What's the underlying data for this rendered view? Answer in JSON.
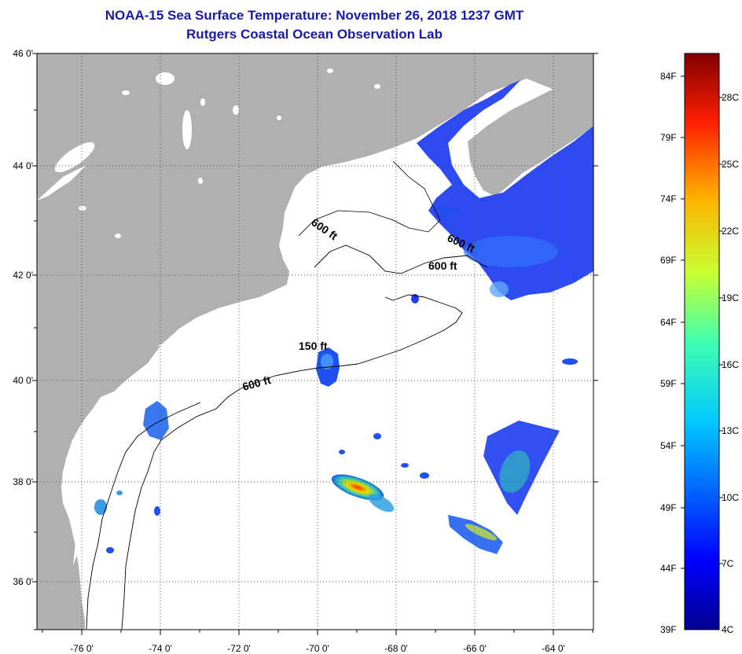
{
  "title": "NOAA-15 Sea Surface Temperature:  November 26, 2018 1237 GMT",
  "subtitle": "Rutgers Coastal Ocean Observation Lab",
  "lat_labels": [
    "46 0'",
    "44 0'",
    "42 0'",
    "40 0'",
    "38 0'",
    "36 0'"
  ],
  "lon_labels": [
    "-76 0'",
    "-74 0'",
    "-72 0'",
    "-70 0'",
    "-68 0'",
    "-66 0'",
    "-64 0'"
  ],
  "contour_labels": [
    "600 ft",
    "600 ft",
    "600 ft",
    "150 ft",
    "600 ft"
  ],
  "colorbar": {
    "fahrenheit_labels": [
      "84F",
      "79F",
      "74F",
      "69F",
      "64F",
      "59F",
      "54F",
      "49F",
      "44F",
      "39F"
    ],
    "celsius_labels": [
      "28C",
      "25C",
      "22C",
      "19C",
      "16C",
      "13C",
      "10C",
      "7C",
      "4C"
    ]
  },
  "colors": {
    "title": "#1a1aa8",
    "land": "#b0b0b0",
    "ocean": "#ffffff"
  }
}
